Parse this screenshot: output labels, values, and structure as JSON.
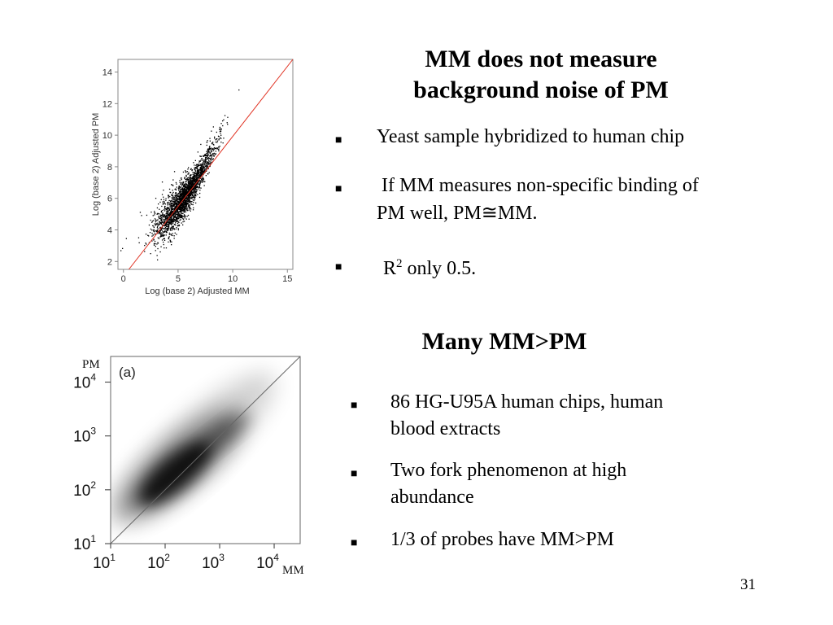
{
  "section1": {
    "title_line1": "MM does not measure",
    "title_line2": "background noise of PM",
    "bullet_symbol": "■",
    "bullets": [
      "Yeast sample hybridized to human chip",
      "If MM measures non-specific binding of",
      "PM well, PM≅MM.",
      "R",
      "2",
      " only 0.5."
    ]
  },
  "section2": {
    "title": "Many MM>PM",
    "bullets": [
      "86 HG-U95A human chips, human",
      "blood extracts",
      "Two fork phenomenon at high",
      "abundance",
      "1/3 of probes have MM>PM"
    ]
  },
  "page_number": "31",
  "chart_data": [
    {
      "type": "scatter",
      "xlabel": "Log (base 2) Adjusted MM",
      "ylabel": "Log (base 2) Adjusted PM",
      "xlim": [
        -0.5,
        15.5
      ],
      "ylim": [
        1.5,
        14.8
      ],
      "xticks": [
        "0",
        "5",
        "10",
        "15"
      ],
      "yticks": [
        "2",
        "4",
        "6",
        "8",
        "10",
        "12",
        "14"
      ],
      "reference_line": "y = x",
      "reference_line_color": "#e03020",
      "point_color": "#000000",
      "cloud_center": [
        5.5,
        6.0
      ],
      "grid": false
    },
    {
      "type": "heatmap",
      "panel_label": "(a)",
      "xlabel": "MM",
      "ylabel": "PM",
      "x_scale": "log",
      "y_scale": "log",
      "xlim": [
        10,
        30000
      ],
      "ylim": [
        10,
        30000
      ],
      "xticks": [
        "10^1",
        "10^2",
        "10^3",
        "10^4"
      ],
      "yticks": [
        "10^1",
        "10^2",
        "10^3",
        "10^4"
      ],
      "reference_line": "y = x",
      "density_peak": [
        150,
        200
      ],
      "grid": false
    }
  ]
}
